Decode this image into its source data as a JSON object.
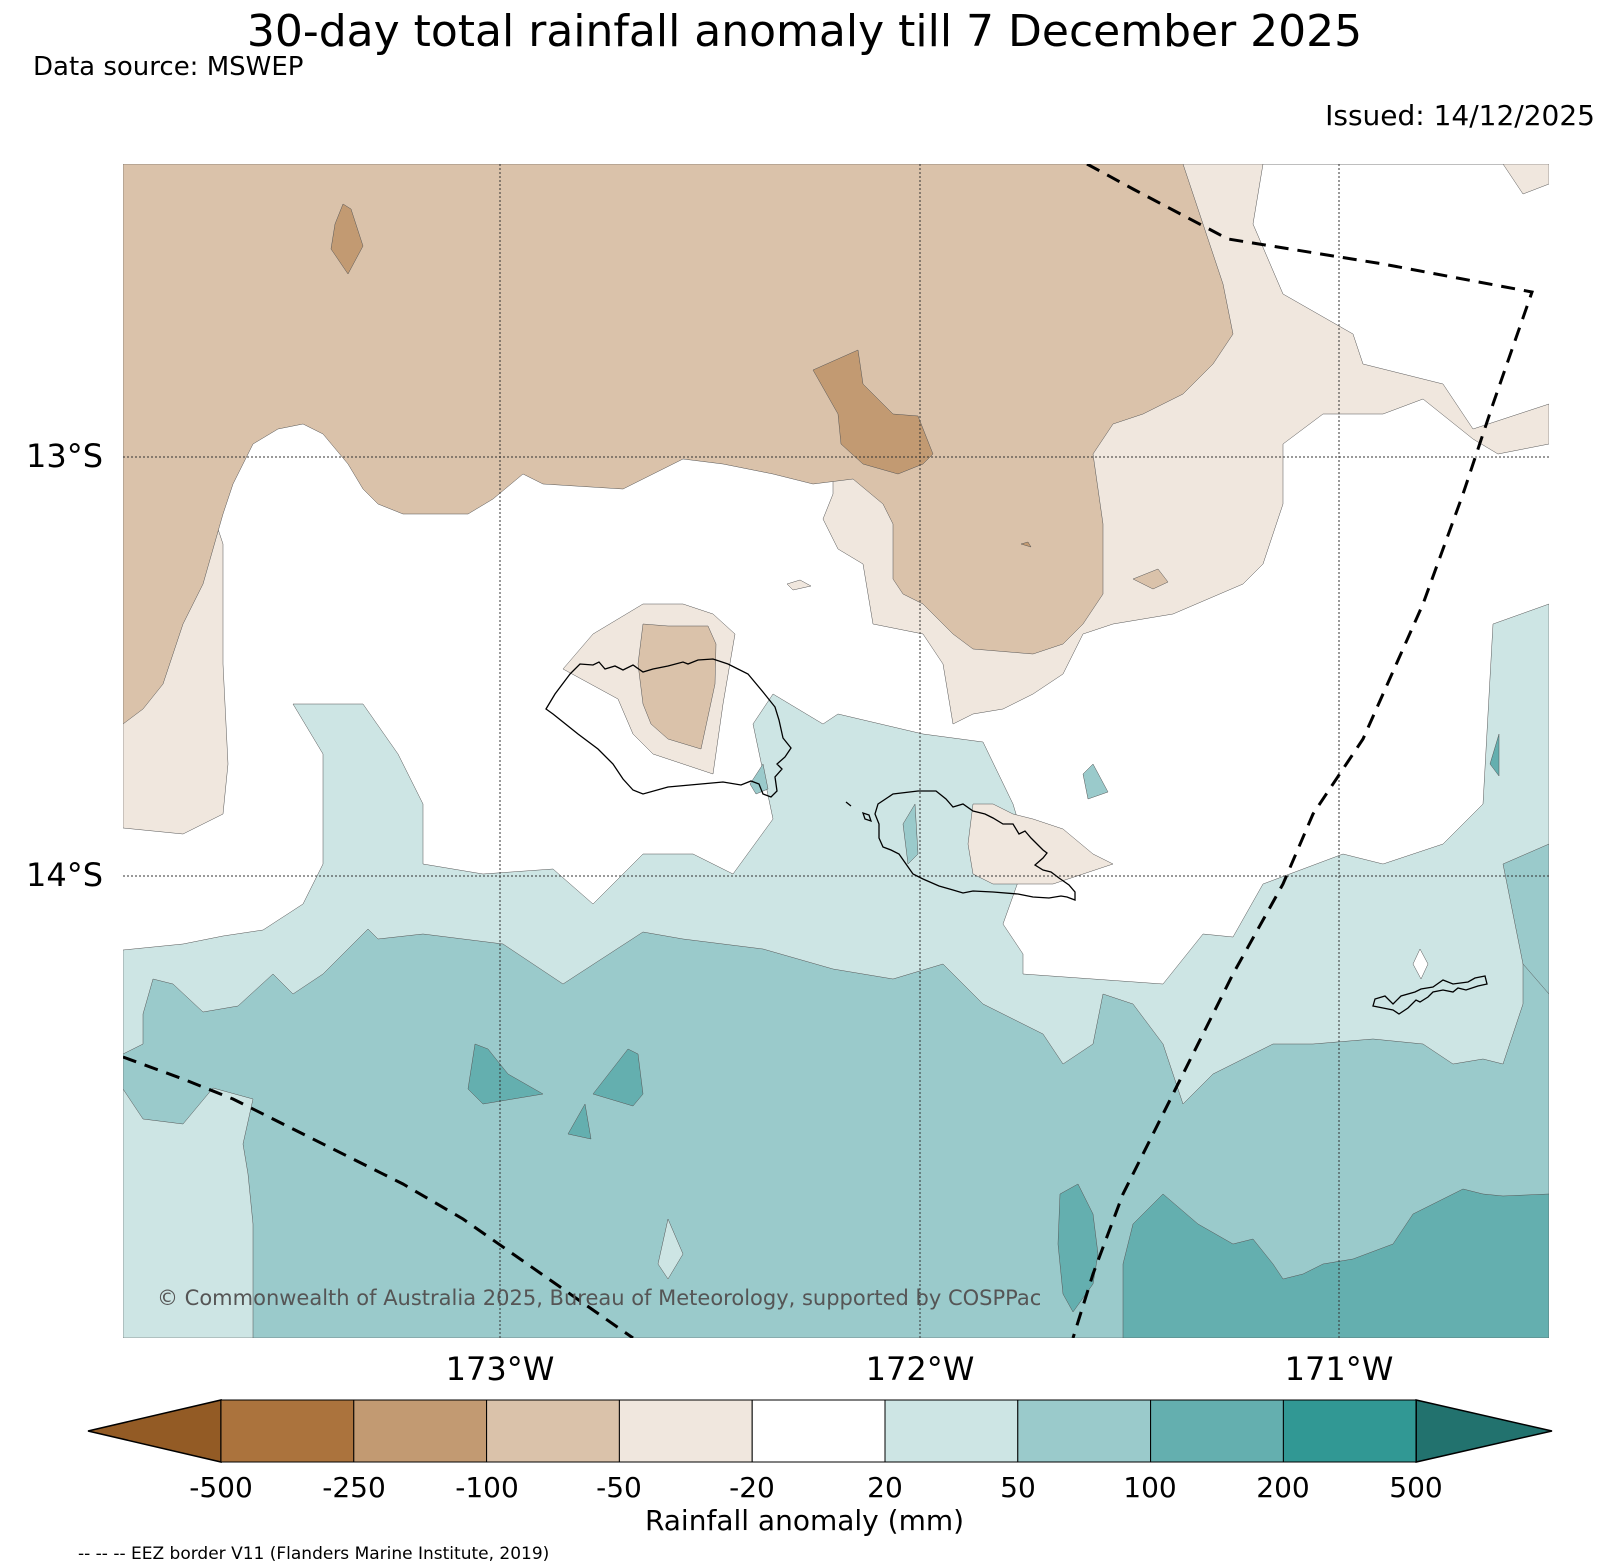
{
  "header": {
    "title": "30-day total rainfall anomaly till 7 December 2025",
    "source": "Data source: MSWEP",
    "issued": "Issued: 14/12/2025"
  },
  "axes": {
    "lat_labels": [
      "13°S",
      "14°S"
    ],
    "lon_labels": [
      "173°W",
      "172°W",
      "171°W"
    ]
  },
  "copyright": "© Commonwealth of Australia 2025, Bureau of Meteorology, supported by COSPPac",
  "colorbar": {
    "label": "Rainfall anomaly (mm)",
    "ticks": [
      "-500",
      "-250",
      "-100",
      "-50",
      "-20",
      "20",
      "50",
      "100",
      "200",
      "500"
    ],
    "colors": [
      "#935b25",
      "#ab733d",
      "#c29a72",
      "#dac2aa",
      "#f0e7de",
      "#ffffff",
      "#cde5e4",
      "#9acacb",
      "#64afaf",
      "#319894",
      "#22726e"
    ]
  },
  "legend_note": "-- -- -- EEZ border V11 (Flanders Marine Institute, 2019)"
}
